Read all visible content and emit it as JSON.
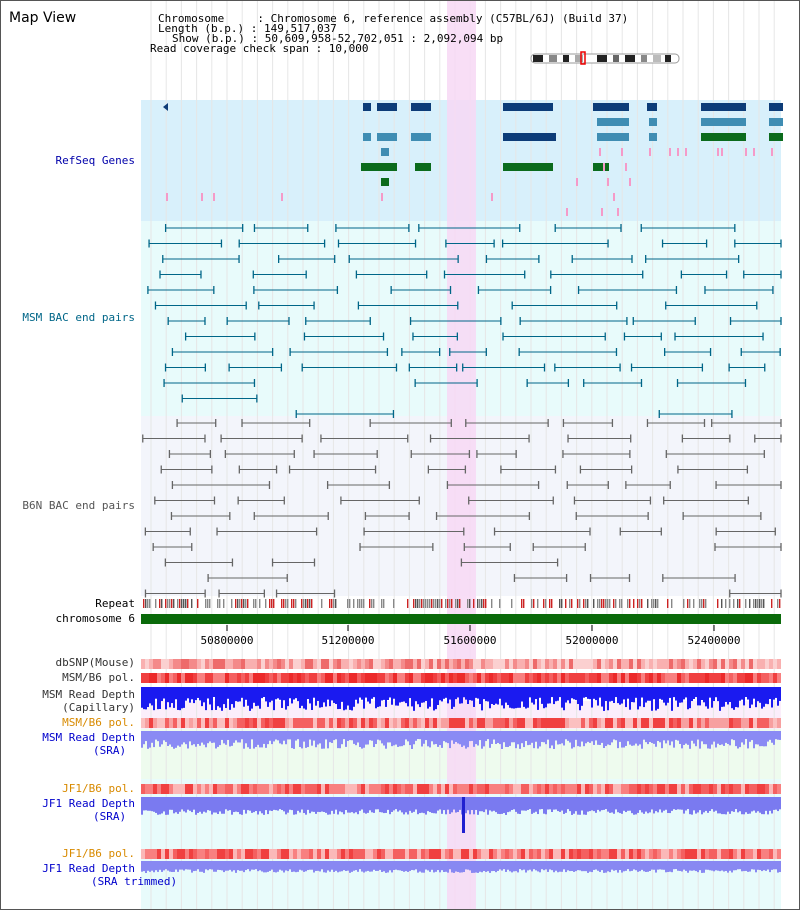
{
  "header": {
    "title": "Map View",
    "chromosome": "Chromosome     : Chromosome 6, reference assembly (C57BL/6J) (Build 37)",
    "length": "Length (b.p.) : 149,517,037",
    "show": "Show (b.p.) : 50,609,958-52,702,051 : 2,092,094 bp",
    "coverage": "Read coverage check span : 10,000"
  },
  "tracks": {
    "refseq": "RefSeq Genes",
    "msm_bac": "MSM BAC end pairs",
    "b6n_bac": "B6N BAC end pairs",
    "repeat": "Repeat",
    "chromosome": "chromosome 6",
    "dbsnp": "dbSNP(Mouse)",
    "msm_b6_pol_1": "MSM/B6 pol.",
    "msm_read_depth_cap_1": "MSM Read Depth",
    "msm_read_depth_cap_2": "(Capillary)",
    "msm_b6_pol_2": "MSM/B6 pol.",
    "msm_read_depth_sra_1": "MSM Read Depth",
    "msm_read_depth_sra_2": "(SRA)",
    "jf1_b6_pol_1": "JF1/B6 pol.",
    "jf1_read_depth_1": "JF1 Read Depth",
    "jf1_read_depth_2": "(SRA)",
    "jf1_b6_pol_2": "JF1/B6 pol.",
    "jf1_read_depth_trim_1": "JF1 Read Depth",
    "jf1_read_depth_trim_2": "(SRA trimmed)"
  },
  "axis": {
    "ticks": [
      "50800000",
      "51200000",
      "51600000",
      "52000000",
      "52400000"
    ]
  },
  "colors": {
    "refseq_bg": "#d8f0fb",
    "msm_bg": "#e8fbfb",
    "b6n_bg": "#f3f5fb",
    "highlight": "#f7d8f5",
    "refseq_label": "#0000aa",
    "msm_label": "#006688",
    "b6n_label": "#555555",
    "pol_orange": "#d88a00",
    "depth_blue": "#0000cc"
  }
}
